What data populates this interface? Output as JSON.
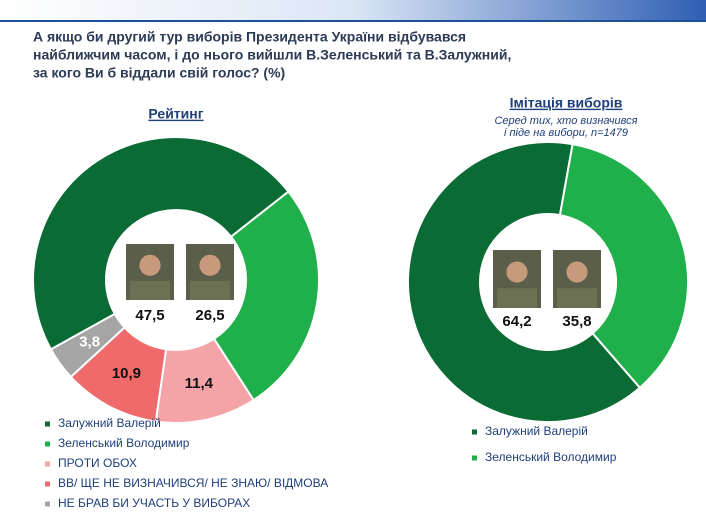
{
  "title": [
    "А якщо би другий тур виборів Президента України відбувався",
    "найближчим часом, і до нього вийшли В.Зеленський та В.Залужний,",
    "за кого Ви б віддали свій голос? (%)"
  ],
  "chart_data": [
    {
      "type": "donut",
      "title": "Рейтинг",
      "categories": [
        "Залужний Валерій",
        "Зеленський Володимир",
        "ПРОТИ ОБОХ",
        "ВВ/ ЩЕ НЕ ВИЗНАЧИВСЯ/ НЕ ЗНАЮ/ ВІДМОВА",
        "НЕ БРАВ БИ УЧАСТЬ У ВИБОРАХ"
      ],
      "values": [
        47.5,
        26.5,
        11.4,
        10.9,
        3.8
      ],
      "value_labels": [
        "47,5",
        "26,5",
        "11,4",
        "10,9",
        "3,8"
      ],
      "colors": [
        "#0b6b34",
        "#20b04b",
        "#f4a3a7",
        "#ef6a6a",
        "#a5a5a5"
      ]
    },
    {
      "type": "donut",
      "title": "Імітація виборів",
      "subtitle": [
        "Серед тих, хто визначився",
        "і піде на вибори, n=1479"
      ],
      "categories": [
        "Залужний Валерій",
        "Зеленський Володимир"
      ],
      "values": [
        64.2,
        35.8
      ],
      "value_labels": [
        "64,2",
        "35,8"
      ],
      "colors": [
        "#0b6b34",
        "#20b04b"
      ]
    }
  ]
}
